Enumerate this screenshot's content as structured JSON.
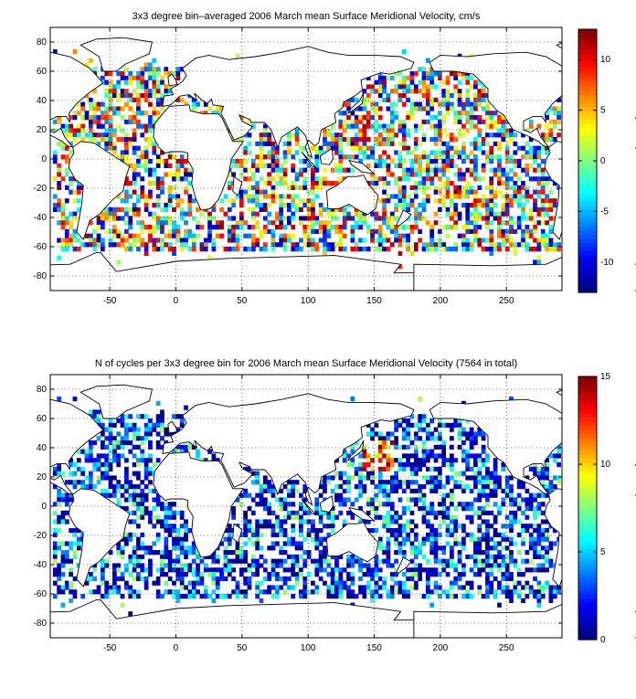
{
  "panels": [
    {
      "title": "3x3 degree bin–averaged 2006 March mean Surface Meridional Velocity, cm/s",
      "chart_data": {
        "type": "heatmap",
        "title": "3x3 degree bin–averaged 2006 March mean Surface Meridional Velocity, cm/s",
        "xlabel": "",
        "ylabel": "",
        "xlim": [
          -95,
          292
        ],
        "ylim": [
          -90,
          90
        ],
        "xticks": [
          -50,
          0,
          50,
          100,
          150,
          200,
          250
        ],
        "yticks": [
          80,
          60,
          40,
          20,
          0,
          -20,
          -40,
          -60,
          -80
        ],
        "colorbar": {
          "min": -13,
          "max": 13,
          "ticks": [
            10,
            5,
            0,
            -5,
            -10
          ],
          "colormap": "jet"
        },
        "grid": true,
        "bin_size_deg": 3,
        "lat_range_with_data": [
          -75,
          75
        ]
      }
    },
    {
      "title": "N of cycles per 3x3 degree bin for 2006 March mean Surface Meridional Velocity (7564 in total)",
      "chart_data": {
        "type": "heatmap",
        "title": "N of cycles per 3x3 degree bin for 2006 March mean Surface Meridional Velocity (7564 in total)",
        "xlabel": "",
        "ylabel": "",
        "xlim": [
          -95,
          292
        ],
        "ylim": [
          -90,
          90
        ],
        "xticks": [
          -50,
          0,
          50,
          100,
          150,
          200,
          250
        ],
        "yticks": [
          80,
          60,
          40,
          20,
          0,
          -20,
          -40,
          -60,
          -80
        ],
        "colorbar": {
          "min": 0,
          "max": 15,
          "ticks": [
            15,
            10,
            5,
            0
          ],
          "colormap": "jet"
        },
        "grid": true,
        "bin_size_deg": 3,
        "total": 7564
      }
    }
  ]
}
